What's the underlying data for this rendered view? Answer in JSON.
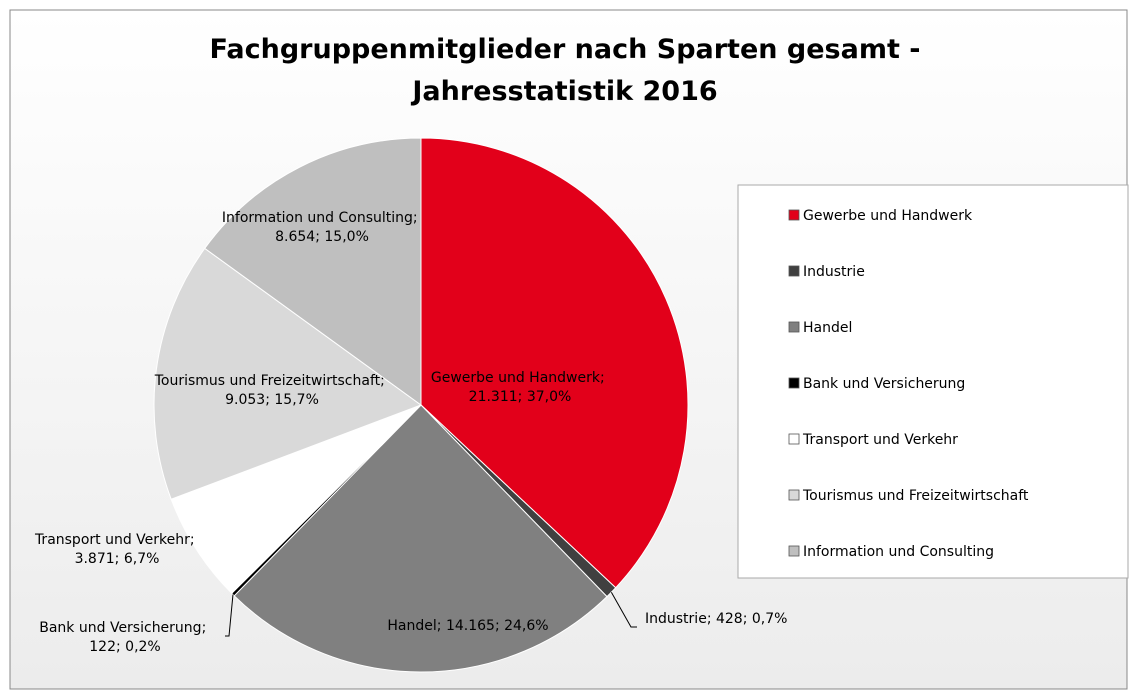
{
  "chart_data": {
    "type": "pie",
    "title": "Fachgruppenmitglieder nach Sparten gesamt - Jahresstatistik 2016",
    "categories": [
      "Gewerbe und Handwerk",
      "Industrie",
      "Handel",
      "Bank und Versicherung",
      "Transport und Verkehr",
      "Tourismus und Freizeitwirtschaft",
      "Information und Consulting"
    ],
    "values": [
      21311,
      428,
      14165,
      122,
      3871,
      9053,
      8654
    ],
    "value_labels": [
      "21.311",
      "428",
      "14.165",
      "122",
      "3.871",
      "9.053",
      "8.654"
    ],
    "percents": [
      37.0,
      0.7,
      24.6,
      0.2,
      6.7,
      15.7,
      15.0
    ],
    "percent_labels": [
      "37,0%",
      "0,7%",
      "24,6%",
      "0,2%",
      "6,7%",
      "15,7%",
      "15,0%"
    ],
    "label_separator": "; ",
    "colors": [
      "#e2001a",
      "#404040",
      "#808080",
      "#000000",
      "#ffffff",
      "#d9d9d9",
      "#bfbfbf"
    ],
    "legend": "right"
  }
}
